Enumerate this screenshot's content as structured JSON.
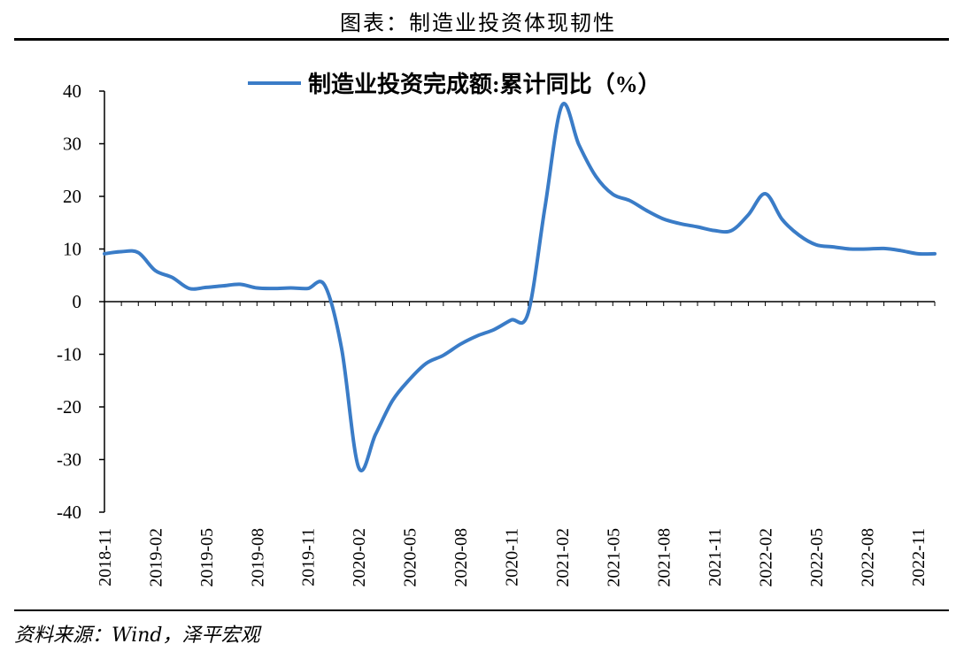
{
  "header": {
    "title": "图表：制造业投资体现韧性"
  },
  "footer": {
    "source": "资料来源：Wind，泽平宏观"
  },
  "colors": {
    "series": "#3A7CC7",
    "axis": "#000000",
    "background": "#ffffff"
  },
  "chart_data": {
    "type": "line",
    "title": "",
    "xlabel": "",
    "ylabel": "",
    "ylim": [
      -40,
      40
    ],
    "yticks": [
      40,
      30,
      20,
      10,
      0,
      -10,
      -20,
      -30,
      -40
    ],
    "grid": false,
    "legend_position": "top",
    "x_tick_labels": [
      "2018-11",
      "2019-02",
      "2019-05",
      "2019-08",
      "2019-11",
      "2020-02",
      "2020-05",
      "2020-08",
      "2020-11",
      "2021-02",
      "2021-05",
      "2021-08",
      "2021-11",
      "2022-02",
      "2022-05",
      "2022-08",
      "2022-11"
    ],
    "x": [
      "2018-11",
      "2018-12",
      "2019-01",
      "2019-02",
      "2019-03",
      "2019-04",
      "2019-05",
      "2019-06",
      "2019-07",
      "2019-08",
      "2019-09",
      "2019-10",
      "2019-11",
      "2019-12",
      "2020-01",
      "2020-02",
      "2020-03",
      "2020-04",
      "2020-05",
      "2020-06",
      "2020-07",
      "2020-08",
      "2020-09",
      "2020-10",
      "2020-11",
      "2020-12",
      "2021-01",
      "2021-02",
      "2021-03",
      "2021-04",
      "2021-05",
      "2021-06",
      "2021-07",
      "2021-08",
      "2021-09",
      "2021-10",
      "2021-11",
      "2021-12",
      "2022-01",
      "2022-02",
      "2022-03",
      "2022-04",
      "2022-05",
      "2022-06",
      "2022-07",
      "2022-08",
      "2022-09",
      "2022-10",
      "2022-11",
      "2022-12"
    ],
    "series": [
      {
        "name": "制造业投资完成额:累计同比（%）",
        "values": [
          9.1,
          9.5,
          9.3,
          5.9,
          4.6,
          2.5,
          2.7,
          3.0,
          3.3,
          2.6,
          2.5,
          2.6,
          2.5,
          3.1,
          -9.0,
          -31.5,
          -25.2,
          -18.8,
          -14.8,
          -11.7,
          -10.2,
          -8.1,
          -6.5,
          -5.3,
          -3.5,
          -2.2,
          18.0,
          37.3,
          29.8,
          23.8,
          20.4,
          19.2,
          17.3,
          15.7,
          14.8,
          14.2,
          13.5,
          13.5,
          16.5,
          20.5,
          15.6,
          12.6,
          10.8,
          10.4,
          10.0,
          10.0,
          10.1,
          9.7,
          9.1,
          9.1
        ]
      }
    ]
  }
}
